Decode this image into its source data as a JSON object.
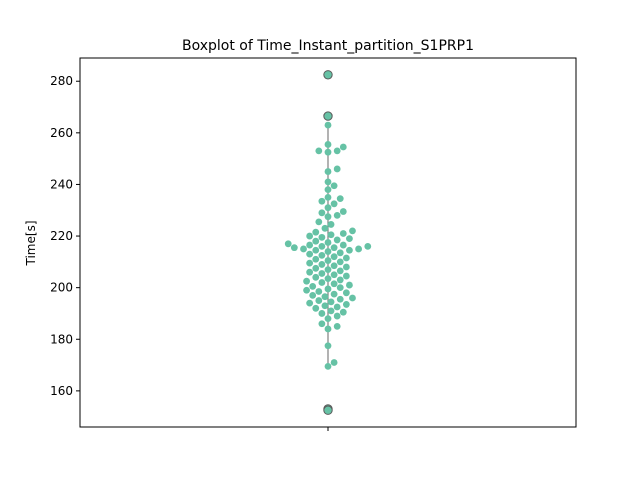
{
  "chart_data": {
    "type": "swarm-box",
    "title": "Boxplot of Time_Instant_partition_S1PRP1",
    "ylabel": "Time[s]",
    "xlabel": "",
    "ylim": [
      146,
      289
    ],
    "yticks": [
      160,
      180,
      200,
      220,
      240,
      260,
      280
    ],
    "grid": false,
    "colors": {
      "points": "#66c2a5",
      "whisker": "#808080",
      "outlier_edge": "#595959",
      "outlier_face": "#66c2a5"
    },
    "whiskers": [
      169.5,
      263
    ],
    "outliers": [
      282.5,
      266.5,
      153,
      152.5
    ],
    "points": [
      255.5,
      254.5,
      253,
      252.5,
      246,
      245,
      241,
      239.5,
      238,
      235,
      234.5,
      233.5,
      232.5,
      231,
      229.5,
      229,
      228,
      227.5,
      225.5,
      224.5,
      223,
      222,
      221.5,
      221,
      220.5,
      220,
      219.5,
      219,
      218.5,
      218,
      217.5,
      217,
      216.5,
      216.5,
      216,
      216,
      215.5,
      215.5,
      215,
      215,
      214.5,
      214.5,
      214,
      213.5,
      213,
      212.5,
      212,
      211.5,
      211,
      210.5,
      210,
      209.5,
      209,
      208.5,
      208,
      207.5,
      207,
      206.5,
      206,
      205.5,
      205,
      204.5,
      204,
      203.5,
      203,
      202.5,
      202,
      201.5,
      201,
      200.5,
      200,
      199.5,
      199,
      198.5,
      198,
      197.5,
      197,
      196.5,
      196,
      195.5,
      195,
      194.5,
      194,
      193.5,
      193,
      192.5,
      192,
      191,
      190.5,
      190,
      189,
      188,
      186,
      185,
      184,
      177.5,
      171,
      169.5,
      263,
      253
    ]
  }
}
